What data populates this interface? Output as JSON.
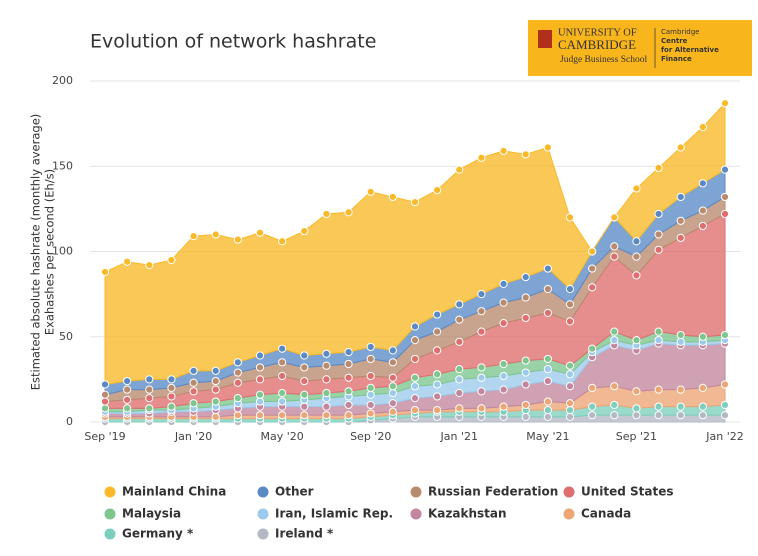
{
  "chart_data": {
    "type": "stacked_area",
    "title": "Evolution of network hashrate",
    "ylabel": [
      "Estimated absolute hashrate (monthly average)",
      "Exahashes per second (Eh/s)"
    ],
    "categories": [
      "Sep '19",
      null,
      null,
      null,
      "Jan '20",
      null,
      null,
      null,
      "May '20",
      null,
      null,
      null,
      "Sep '20",
      null,
      null,
      null,
      "Jan '21",
      null,
      null,
      null,
      "May '21",
      null,
      null,
      null,
      "Sep '21",
      null,
      null,
      null,
      "Jan '22"
    ],
    "ylim": [
      0,
      200
    ],
    "yticks": [
      0,
      50,
      100,
      150,
      200
    ],
    "grid": true,
    "series": [
      {
        "name": "Mainland China",
        "color": "#f9b928",
        "values": [
          66,
          70,
          67,
          70,
          79,
          80,
          72,
          72,
          63,
          73,
          82,
          82,
          91,
          90,
          73,
          73,
          79,
          80,
          78,
          72,
          71,
          42,
          0,
          0,
          31,
          27,
          29,
          33,
          39
        ]
      },
      {
        "name": "Other",
        "color": "#5a8ac6",
        "values": [
          6,
          5,
          6,
          5,
          7,
          6,
          6,
          7,
          8,
          7,
          7,
          7,
          7,
          7,
          8,
          10,
          9,
          10,
          11,
          12,
          12,
          9,
          10,
          17,
          9,
          12,
          14,
          16,
          16
        ]
      },
      {
        "name": "Russian Federation",
        "color": "#b98a6e",
        "values": [
          4,
          6,
          5,
          5,
          5,
          5,
          6,
          7,
          8,
          8,
          8,
          8,
          10,
          9,
          11,
          11,
          13,
          12,
          12,
          12,
          14,
          10,
          11,
          6,
          11,
          9,
          10,
          9,
          10
        ]
      },
      {
        "name": "United States",
        "color": "#df6e6e",
        "values": [
          4,
          5,
          6,
          6,
          7,
          7,
          9,
          9,
          10,
          8,
          8,
          8,
          7,
          5,
          11,
          14,
          16,
          21,
          24,
          25,
          27,
          26,
          36,
          44,
          38,
          48,
          57,
          65,
          71
        ]
      },
      {
        "name": "Malaysia",
        "color": "#7ec58e",
        "values": [
          2,
          2,
          1,
          2,
          3,
          3,
          3,
          4,
          5,
          3,
          3,
          3,
          4,
          4,
          5,
          6,
          6,
          6,
          7,
          7,
          6,
          5,
          2,
          5,
          3,
          5,
          4,
          3,
          3
        ]
      },
      {
        "name": "Iran, Islamic Rep.",
        "color": "#9ccaec",
        "values": [
          1,
          1,
          2,
          1,
          2,
          2,
          3,
          3,
          3,
          4,
          5,
          5,
          6,
          6,
          7,
          7,
          8,
          8,
          8,
          7,
          7,
          7,
          3,
          3,
          3,
          2,
          2,
          2,
          2
        ]
      },
      {
        "name": "Kazakhstan",
        "color": "#c2869e",
        "values": [
          2,
          2,
          2,
          3,
          3,
          4,
          4,
          5,
          5,
          5,
          5,
          6,
          5,
          5,
          7,
          8,
          9,
          10,
          10,
          12,
          12,
          10,
          18,
          24,
          24,
          27,
          26,
          25,
          24
        ]
      },
      {
        "name": "Canada",
        "color": "#eda574",
        "values": [
          1,
          1,
          1,
          1,
          1,
          1,
          2,
          2,
          2,
          2,
          2,
          2,
          2,
          2,
          2,
          1,
          2,
          2,
          3,
          3,
          5,
          4,
          11,
          11,
          10,
          10,
          10,
          11,
          12
        ]
      },
      {
        "name": "Germany *",
        "color": "#7dcfbd",
        "values": [
          2,
          2,
          2,
          2,
          2,
          2,
          2,
          2,
          2,
          2,
          2,
          2,
          2,
          2,
          2,
          3,
          3,
          3,
          3,
          4,
          4,
          4,
          5,
          6,
          4,
          5,
          5,
          5,
          6
        ]
      },
      {
        "name": "Ireland *",
        "color": "#b3b8c4",
        "values": [
          0,
          0,
          0,
          0,
          0,
          0,
          0,
          0,
          0,
          0,
          0,
          0,
          1,
          2,
          3,
          3,
          3,
          3,
          3,
          3,
          3,
          3,
          4,
          4,
          4,
          4,
          4,
          4,
          4
        ]
      }
    ]
  },
  "logo": {
    "line1": "UNIVERSITY OF",
    "line2": "CAMBRIDGE",
    "line3": "Judge Business School",
    "centre": [
      "Cambridge",
      "Centre",
      "for Alternative",
      "Finance"
    ]
  }
}
